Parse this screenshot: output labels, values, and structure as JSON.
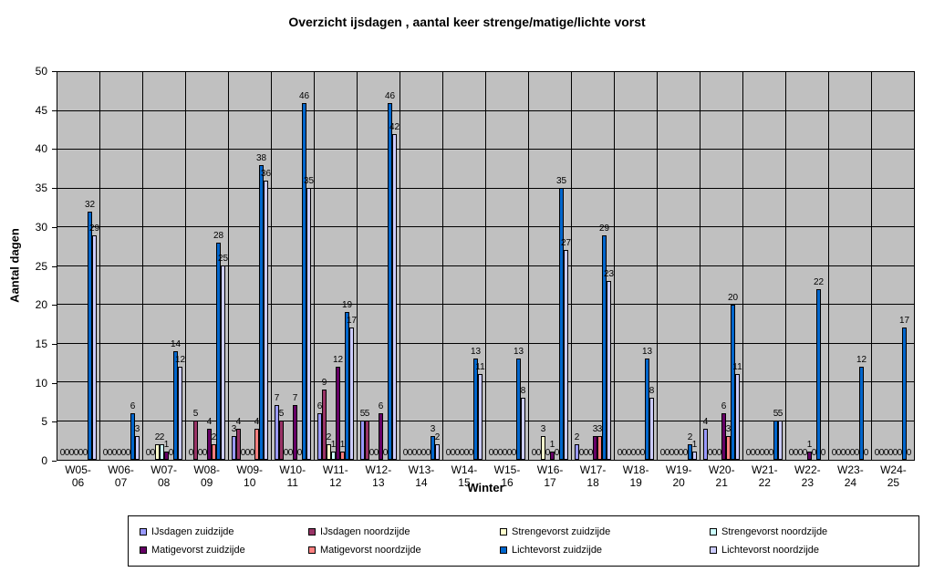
{
  "chart_data": {
    "type": "bar",
    "title": "Overzicht ijsdagen , aantal keer strenge/matige/lichte vorst",
    "xlabel": "Winter",
    "ylabel": "Aantal dagen",
    "ylim": [
      0,
      50
    ],
    "yticks": [
      0,
      5,
      10,
      15,
      20,
      25,
      30,
      35,
      40,
      45,
      50
    ],
    "grid": true,
    "plot_background": "#c0c0c0",
    "legend_position": "bottom",
    "categories": [
      "W05-06",
      "W06-07",
      "W07-08",
      "W08-09",
      "W09-10",
      "W10-11",
      "W11-12",
      "W12-13",
      "W13-14",
      "W14-15",
      "W15-16",
      "W16-17",
      "W17-18",
      "W18-19",
      "W19-20",
      "W20-21",
      "W21-22",
      "W22-23",
      "W23-24",
      "W24-25"
    ],
    "series": [
      {
        "name": "IJsdagen zuidzijde",
        "color": "#9999FF",
        "values": [
          0,
          0,
          0,
          0,
          3,
          7,
          6,
          5,
          0,
          0,
          0,
          0,
          2,
          0,
          0,
          4,
          0,
          0,
          0,
          0
        ]
      },
      {
        "name": "IJsdagen noordzijde",
        "color": "#993366",
        "values": [
          0,
          0,
          0,
          5,
          4,
          5,
          9,
          5,
          0,
          0,
          0,
          0,
          0,
          0,
          0,
          0,
          0,
          0,
          0,
          0
        ]
      },
      {
        "name": "Strengevorst zuidzijde",
        "color": "#FFFFCC",
        "values": [
          0,
          0,
          2,
          0,
          0,
          0,
          2,
          0,
          0,
          0,
          0,
          3,
          0,
          0,
          0,
          0,
          0,
          0,
          0,
          0
        ]
      },
      {
        "name": "Strengevorst noordzijde",
        "color": "#CCFFFF",
        "values": [
          0,
          0,
          2,
          0,
          0,
          0,
          1,
          0,
          0,
          0,
          0,
          0,
          0,
          0,
          0,
          0,
          0,
          0,
          0,
          0
        ]
      },
      {
        "name": "Matigevorst zuidzijde",
        "color": "#660066",
        "values": [
          0,
          0,
          1,
          4,
          0,
          7,
          12,
          6,
          0,
          0,
          0,
          1,
          3,
          0,
          0,
          6,
          0,
          1,
          0,
          0
        ]
      },
      {
        "name": "Matigevorst noordzijde",
        "color": "#FF8080",
        "values": [
          0,
          0,
          0,
          2,
          4,
          0,
          1,
          0,
          0,
          0,
          0,
          0,
          3,
          0,
          0,
          3,
          0,
          0,
          0,
          0
        ]
      },
      {
        "name": "Lichtevorst zuidzijde",
        "color": "#0066CC",
        "values": [
          32,
          6,
          14,
          28,
          38,
          46,
          19,
          46,
          3,
          13,
          13,
          35,
          29,
          13,
          2,
          20,
          5,
          22,
          12,
          17
        ]
      },
      {
        "name": "Lichtevorst noordzijde",
        "color": "#CCCCFF",
        "values": [
          29,
          3,
          12,
          25,
          36,
          35,
          17,
          42,
          2,
          11,
          8,
          27,
          23,
          8,
          1,
          11,
          5,
          0,
          0,
          0
        ]
      }
    ]
  }
}
